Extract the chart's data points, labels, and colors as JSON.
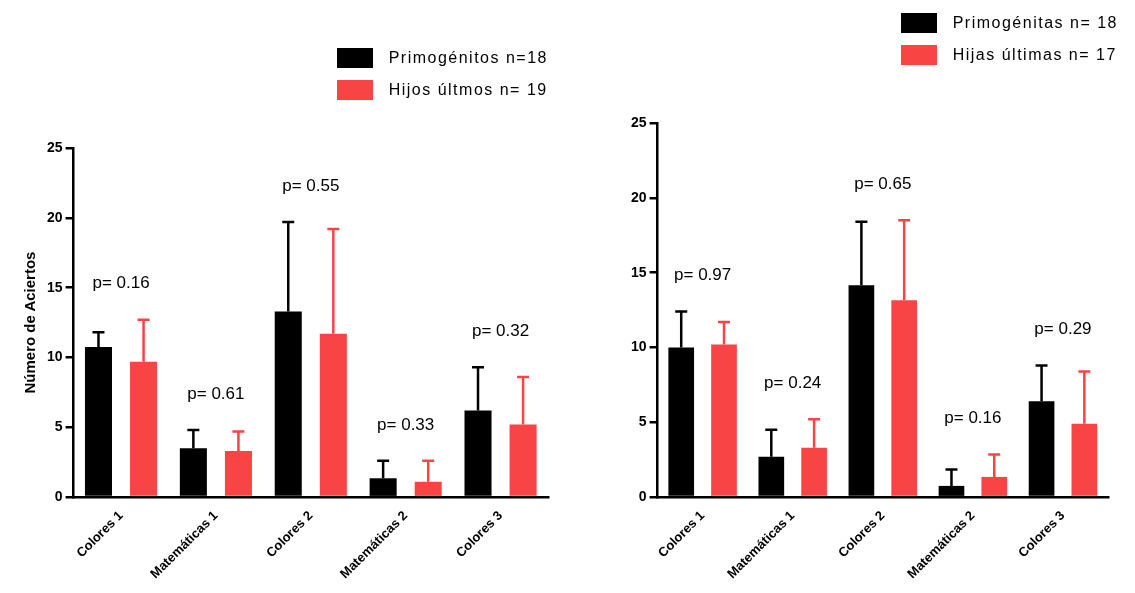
{
  "chart_data": [
    {
      "type": "bar",
      "ylabel": "Número de Aciertos",
      "categories": [
        "Colores 1",
        "Matemáticas 1",
        "Colores 2",
        "Matemáticas 2",
        "Colores 3"
      ],
      "ylim": [
        0,
        25
      ],
      "yticks": [
        0,
        5,
        10,
        15,
        20,
        25
      ],
      "grid": false,
      "legend": "top right",
      "series": [
        {
          "name": "Primogénitos n=18",
          "color": "#000000",
          "values": [
            10.75,
            3.5,
            13.3,
            1.35,
            6.2
          ],
          "errors": [
            1.05,
            1.3,
            6.4,
            1.25,
            3.1
          ]
        },
        {
          "name": "Hijos últmos n= 19",
          "color": "#f84444",
          "values": [
            9.7,
            3.3,
            11.7,
            1.1,
            5.2
          ],
          "errors": [
            3.0,
            1.4,
            7.5,
            1.5,
            3.4
          ]
        }
      ],
      "annotations": [
        "p= 0.16",
        "p= 0.61",
        "p= 0.55",
        "p= 0.33",
        "p= 0.32"
      ]
    },
    {
      "type": "bar",
      "categories": [
        "Colores 1",
        "Matemáticas 1",
        "Colores 2",
        "Matemáticas 2",
        "Colores 3"
      ],
      "ylim": [
        0,
        25
      ],
      "yticks": [
        0,
        5,
        10,
        15,
        20,
        25
      ],
      "grid": false,
      "legend": "top right",
      "series": [
        {
          "name": "Primogénitas n= 18",
          "color": "#000000",
          "values": [
            10.0,
            2.7,
            14.15,
            0.75,
            6.4
          ],
          "errors": [
            2.4,
            1.8,
            4.25,
            1.1,
            2.4
          ]
        },
        {
          "name": "Hijas últimas n= 17",
          "color": "#f84444",
          "values": [
            10.2,
            3.3,
            13.15,
            1.35,
            4.9
          ],
          "errors": [
            1.5,
            1.9,
            5.35,
            1.5,
            3.5
          ]
        }
      ],
      "annotations": [
        "p= 0.97",
        "p= 0.24",
        "p= 0.65",
        "p= 0.16",
        "p= 0.29"
      ]
    }
  ]
}
